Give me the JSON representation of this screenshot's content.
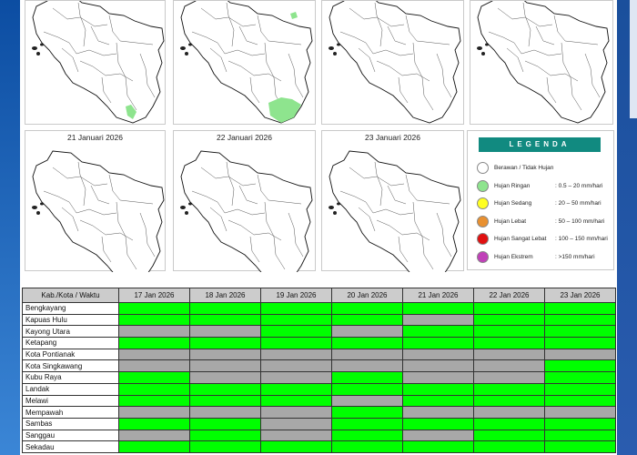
{
  "map_panels": [
    {
      "date": "",
      "rain": [
        "south-east"
      ]
    },
    {
      "date": "",
      "rain": [
        "north-east",
        "south-east-wide"
      ]
    },
    {
      "date": "",
      "rain": []
    },
    {
      "date": "",
      "rain": []
    },
    {
      "date": "21 Januari 2026",
      "rain": []
    },
    {
      "date": "22 Januari 2026",
      "rain": []
    },
    {
      "date": "23 Januari 2026",
      "rain": []
    }
  ],
  "legend": {
    "title": "LEGENDA",
    "items": [
      {
        "name": "Berawan / Tidak Hujan",
        "range": "",
        "color": "#ffffff"
      },
      {
        "name": "Hujan Ringan",
        "range": ": 0.5 – 20 mm/hari",
        "color": "#8ee48e"
      },
      {
        "name": "Hujan Sedang",
        "range": ": 20 – 50 mm/hari",
        "color": "#ffff22"
      },
      {
        "name": "Hujan Lebat",
        "range": ": 50 – 100 mm/hari",
        "color": "#e89030"
      },
      {
        "name": "Hujan Sangat Lebat",
        "range": ": 100 – 150 mm/hari",
        "color": "#e01010"
      },
      {
        "name": "Hujan Ekstrem",
        "range": ": >150 mm/hari",
        "color": "#c040b8"
      }
    ]
  },
  "table": {
    "header_label": "Kab./Kota / Waktu",
    "dates": [
      "17 Jan 2026",
      "18 Jan 2026",
      "19 Jan 2026",
      "20 Jan 2026",
      "21 Jan 2026",
      "22 Jan 2026",
      "23 Jan 2026"
    ],
    "colors": {
      "rain": "#00ff00",
      "no_rain": "#a8a8a8"
    },
    "rows": [
      {
        "name": "Bengkayang",
        "cells": [
          "g",
          "g",
          "g",
          "g",
          "g",
          "g",
          "g"
        ]
      },
      {
        "name": "Kapuas Hulu",
        "cells": [
          "g",
          "g",
          "g",
          "g",
          "x",
          "g",
          "g"
        ]
      },
      {
        "name": "Kayong Utara",
        "cells": [
          "x",
          "x",
          "g",
          "x",
          "g",
          "g",
          "g"
        ]
      },
      {
        "name": "Ketapang",
        "cells": [
          "g",
          "g",
          "g",
          "g",
          "g",
          "g",
          "g"
        ]
      },
      {
        "name": "Kota Pontianak",
        "cells": [
          "x",
          "x",
          "x",
          "x",
          "x",
          "x",
          "x"
        ]
      },
      {
        "name": "Kota Singkawang",
        "cells": [
          "x",
          "x",
          "x",
          "x",
          "x",
          "x",
          "g"
        ]
      },
      {
        "name": "Kubu Raya",
        "cells": [
          "g",
          "x",
          "x",
          "g",
          "x",
          "x",
          "g"
        ]
      },
      {
        "name": "Landak",
        "cells": [
          "g",
          "g",
          "g",
          "g",
          "g",
          "g",
          "g"
        ]
      },
      {
        "name": "Melawi",
        "cells": [
          "g",
          "g",
          "g",
          "x",
          "g",
          "g",
          "g"
        ]
      },
      {
        "name": "Mempawah",
        "cells": [
          "x",
          "x",
          "x",
          "g",
          "x",
          "x",
          "x"
        ]
      },
      {
        "name": "Sambas",
        "cells": [
          "g",
          "g",
          "x",
          "g",
          "g",
          "g",
          "g"
        ]
      },
      {
        "name": "Sanggau",
        "cells": [
          "x",
          "g",
          "x",
          "g",
          "x",
          "g",
          "g"
        ]
      },
      {
        "name": "Sekadau",
        "cells": [
          "g",
          "g",
          "g",
          "g",
          "g",
          "g",
          "g"
        ]
      }
    ]
  }
}
